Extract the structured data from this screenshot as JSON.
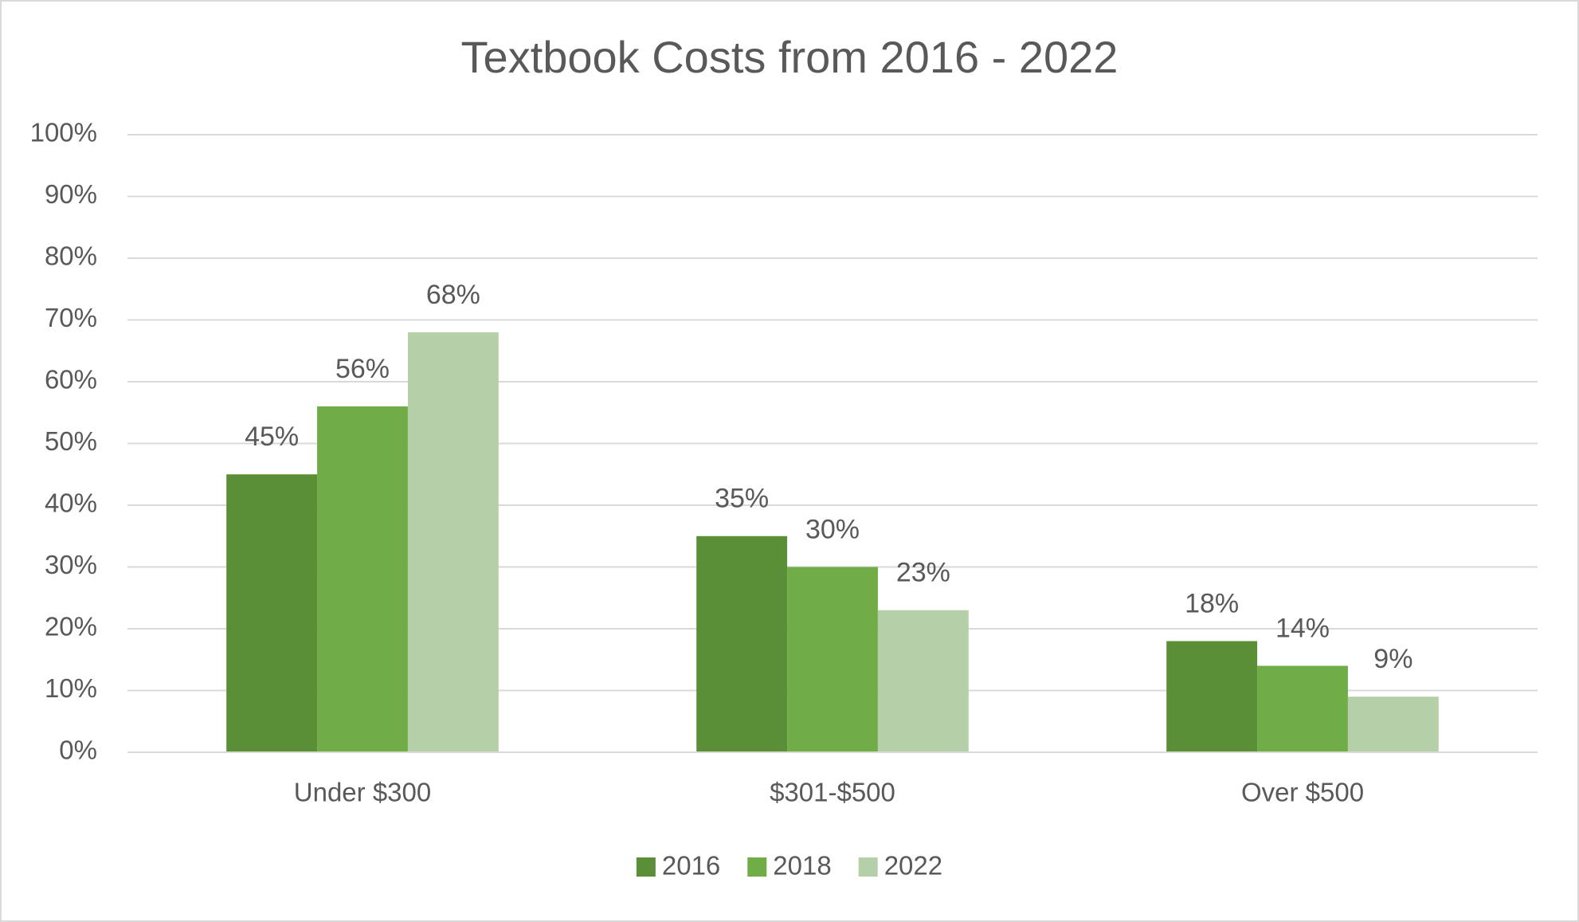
{
  "chart_data": {
    "type": "bar",
    "title": "Textbook Costs from 2016 - 2022",
    "categories": [
      "Under $300",
      "$301-$500",
      "Over $500"
    ],
    "series": [
      {
        "name": "2016",
        "color": "#5a8f37",
        "values": [
          45,
          35,
          18
        ],
        "value_labels": [
          "45%",
          "35%",
          "18%"
        ]
      },
      {
        "name": "2018",
        "color": "#70ad47",
        "values": [
          56,
          30,
          14
        ],
        "value_labels": [
          "56%",
          "30%",
          "14%"
        ]
      },
      {
        "name": "2022",
        "color": "#b5d0a8",
        "values": [
          68,
          23,
          9
        ],
        "value_labels": [
          "68%",
          "23%",
          "9%"
        ]
      }
    ],
    "ylim": [
      0,
      100
    ],
    "yticks": [
      {
        "value": 0,
        "label": "0%"
      },
      {
        "value": 10,
        "label": "10%"
      },
      {
        "value": 20,
        "label": "20%"
      },
      {
        "value": 30,
        "label": "30%"
      },
      {
        "value": 40,
        "label": "40%"
      },
      {
        "value": 50,
        "label": "50%"
      },
      {
        "value": 60,
        "label": "60%"
      },
      {
        "value": 70,
        "label": "70%"
      },
      {
        "value": 80,
        "label": "80%"
      },
      {
        "value": 90,
        "label": "90%"
      },
      {
        "value": 100,
        "label": "100%"
      }
    ],
    "grid": true,
    "legend": "bottom"
  }
}
